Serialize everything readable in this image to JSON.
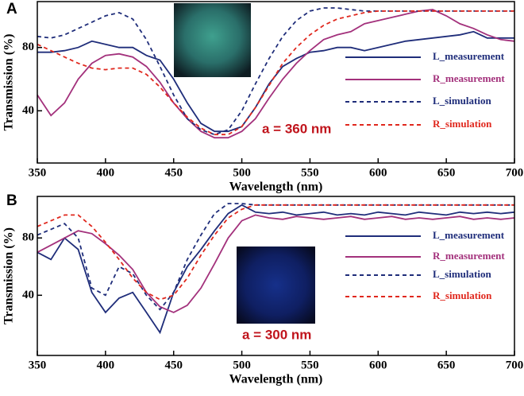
{
  "chart_data": [
    {
      "type": "line",
      "panel_label": "A",
      "annotation": "a = 360 nm",
      "x_label": "Wavelength (nm)",
      "y_label": "Transmission (%)",
      "xlim": [
        350,
        700
      ],
      "ylim": [
        7,
        109
      ],
      "xticks": [
        350,
        400,
        450,
        500,
        550,
        600,
        650,
        700
      ],
      "yticks": [
        40,
        80
      ],
      "x": [
        350,
        360,
        370,
        380,
        390,
        400,
        410,
        420,
        430,
        440,
        450,
        460,
        470,
        480,
        490,
        500,
        510,
        520,
        530,
        540,
        550,
        560,
        570,
        580,
        590,
        600,
        610,
        620,
        630,
        640,
        650,
        660,
        670,
        680,
        690,
        700
      ],
      "series": [
        {
          "name": "L_measurement",
          "color": "#1f2d7a",
          "style": "solid",
          "values": [
            77,
            77,
            78,
            80,
            84,
            82,
            80,
            80,
            75,
            72,
            60,
            45,
            32,
            27,
            27,
            30,
            42,
            57,
            68,
            73,
            77,
            78,
            80,
            80,
            78,
            80,
            82,
            84,
            85,
            86,
            87,
            88,
            90,
            86,
            86,
            86
          ]
        },
        {
          "name": "R_measurement",
          "color": "#a3317c",
          "style": "solid",
          "values": [
            50,
            37,
            45,
            60,
            70,
            75,
            76,
            74,
            68,
            58,
            45,
            35,
            27,
            23,
            23,
            27,
            35,
            48,
            60,
            70,
            78,
            85,
            88,
            90,
            95,
            97,
            99,
            101,
            103,
            104,
            100,
            95,
            92,
            88,
            85,
            84
          ]
        },
        {
          "name": "L_simulation",
          "color": "#1f2d7a",
          "style": "dashed",
          "values": [
            87,
            86,
            88,
            92,
            96,
            100,
            102,
            98,
            85,
            68,
            50,
            35,
            28,
            25,
            28,
            40,
            57,
            73,
            87,
            97,
            103,
            105,
            105,
            104,
            103,
            103,
            103,
            103,
            103,
            103,
            103,
            103,
            103,
            103,
            103,
            103
          ]
        },
        {
          "name": "R_simulation",
          "color": "#e0281e",
          "style": "dashed",
          "values": [
            82,
            78,
            74,
            70,
            67,
            66,
            67,
            67,
            63,
            55,
            45,
            36,
            29,
            25,
            25,
            30,
            42,
            56,
            70,
            80,
            88,
            94,
            98,
            100,
            102,
            103,
            103,
            103,
            103,
            103,
            103,
            103,
            103,
            103,
            103,
            103
          ]
        }
      ]
    },
    {
      "type": "line",
      "panel_label": "B",
      "annotation": "a = 300 nm",
      "x_label": "Wavelength (nm)",
      "y_label": "Transmission (%)",
      "xlim": [
        350,
        700
      ],
      "ylim": [
        -2,
        109
      ],
      "xticks": [
        350,
        400,
        450,
        500,
        550,
        600,
        650,
        700
      ],
      "yticks": [
        40,
        80
      ],
      "x": [
        350,
        360,
        370,
        380,
        390,
        400,
        410,
        420,
        430,
        440,
        450,
        460,
        470,
        480,
        490,
        500,
        510,
        520,
        530,
        540,
        550,
        560,
        570,
        580,
        590,
        600,
        610,
        620,
        630,
        640,
        650,
        660,
        670,
        680,
        690,
        700
      ],
      "series": [
        {
          "name": "L_measurement",
          "color": "#1f2d7a",
          "style": "solid",
          "values": [
            70,
            65,
            80,
            72,
            42,
            28,
            38,
            42,
            28,
            14,
            42,
            60,
            72,
            85,
            97,
            103,
            98,
            97,
            98,
            96,
            97,
            98,
            96,
            97,
            96,
            98,
            97,
            96,
            98,
            97,
            96,
            98,
            97,
            98,
            97,
            98
          ]
        },
        {
          "name": "R_measurement",
          "color": "#a3317c",
          "style": "solid",
          "values": [
            70,
            75,
            80,
            85,
            83,
            76,
            68,
            58,
            42,
            32,
            28,
            33,
            45,
            62,
            80,
            92,
            96,
            94,
            93,
            95,
            94,
            93,
            94,
            95,
            93,
            94,
            95,
            93,
            94,
            93,
            94,
            95,
            93,
            94,
            93,
            94
          ]
        },
        {
          "name": "L_simulation",
          "color": "#1f2d7a",
          "style": "dashed",
          "values": [
            82,
            86,
            90,
            80,
            45,
            40,
            60,
            55,
            40,
            30,
            42,
            65,
            82,
            97,
            104,
            104,
            103,
            103,
            103,
            103,
            103,
            103,
            103,
            103,
            103,
            103,
            103,
            103,
            103,
            103,
            103,
            103,
            103,
            103,
            103,
            103
          ]
        },
        {
          "name": "R_simulation",
          "color": "#e0281e",
          "style": "dashed",
          "values": [
            88,
            92,
            96,
            96,
            88,
            77,
            65,
            52,
            42,
            37,
            40,
            52,
            68,
            82,
            94,
            100,
            103,
            103,
            103,
            103,
            103,
            103,
            103,
            103,
            103,
            103,
            103,
            103,
            103,
            103,
            103,
            103,
            103,
            103,
            103,
            103
          ]
        }
      ]
    }
  ]
}
